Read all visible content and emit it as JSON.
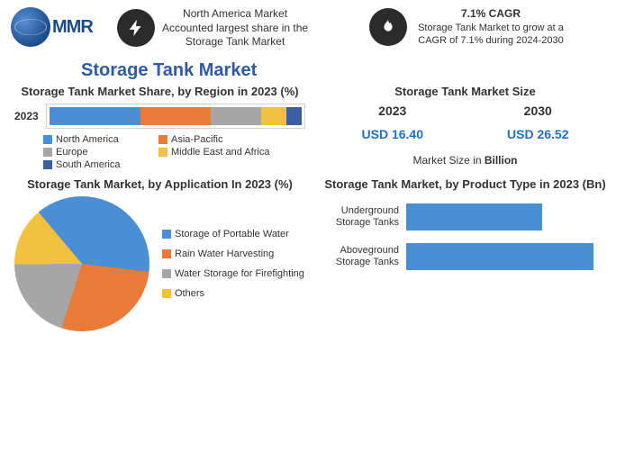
{
  "header": {
    "logo_text": "MMR",
    "info1_line1": "North America Market",
    "info1_line2": "Accounted largest share in the",
    "info1_line3": "Storage Tank Market",
    "info2_title": "7.1% CAGR",
    "info2_body": "Storage Tank Market to grow at a CAGR of 7.1% during 2024-2030"
  },
  "main_title": "Storage Tank Market",
  "region_chart": {
    "title": "Storage Tank Market Share, by Region in 2023 (%)",
    "row_label": "2023",
    "segments": [
      {
        "name": "North America",
        "value": 36,
        "color": "#4a8fd6"
      },
      {
        "name": "Asia-Pacific",
        "value": 28,
        "color": "#e87b3a"
      },
      {
        "name": "Europe",
        "value": 20,
        "color": "#a6a6a6"
      },
      {
        "name": "Middle East and Africa",
        "value": 10,
        "color": "#f2c23e"
      },
      {
        "name": "South America",
        "value": 6,
        "color": "#3b5fa0"
      }
    ]
  },
  "market_size": {
    "title": "Storage Tank Market Size",
    "year1": "2023",
    "year2": "2030",
    "val1": "USD 16.40",
    "val2": "USD 26.52",
    "note_prefix": "Market Size in ",
    "note_bold": "Billion"
  },
  "application_pie": {
    "title": "Storage Tank Market, by Application In 2023 (%)",
    "slices": [
      {
        "name": "Storage of Portable Water",
        "value": 38,
        "color": "#4a8fd6"
      },
      {
        "name": "Rain Water Harvesting",
        "value": 28,
        "color": "#e87b3a"
      },
      {
        "name": "Water Storage for Firefighting",
        "value": 20,
        "color": "#a6a6a6"
      },
      {
        "name": "Others",
        "value": 14,
        "color": "#f2c23e"
      }
    ]
  },
  "product_bars": {
    "title": "Storage Tank Market, by Product Type in 2023 (Bn)",
    "color": "#4a8fd6",
    "max": 12,
    "bars": [
      {
        "label": "Underground Storage Tanks",
        "value": 8
      },
      {
        "label": "Aboveground Storage Tanks",
        "value": 11
      }
    ]
  }
}
